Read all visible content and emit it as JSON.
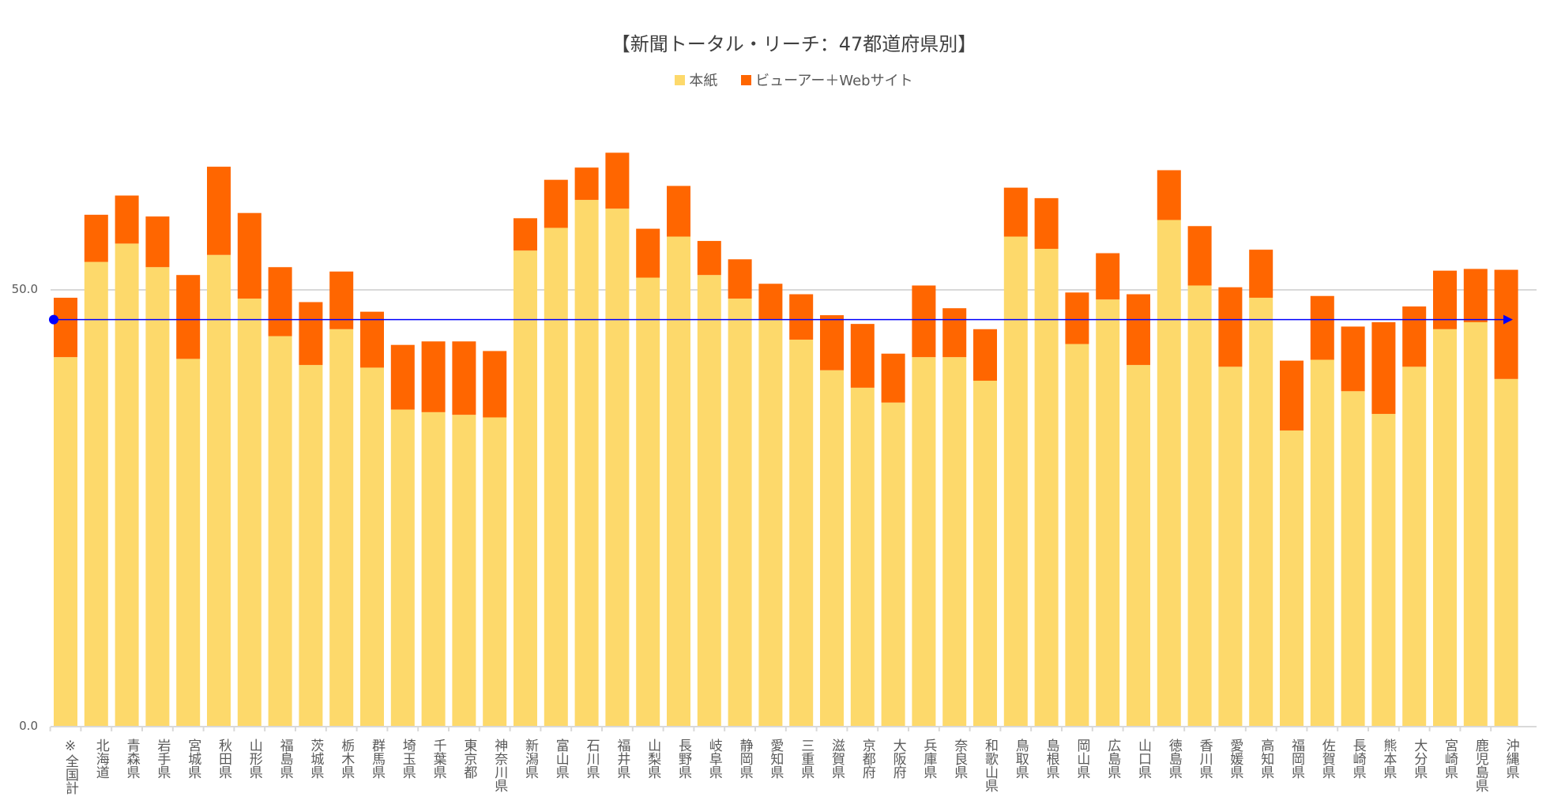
{
  "chart_data": {
    "type": "bar",
    "stacked": true,
    "title": "【新聞トータル・リーチ：47都道府県別】",
    "legend_position": "top",
    "ylim": [
      0,
      72
    ],
    "y_ticks": [
      {
        "value": 0,
        "label": "0.0"
      },
      {
        "value": 50,
        "label": "50.0"
      }
    ],
    "grid": true,
    "categories": [
      "※全国計",
      "北海道",
      "青森県",
      "岩手県",
      "宮城県",
      "秋田県",
      "山形県",
      "福島県",
      "茨城県",
      "栃木県",
      "群馬県",
      "埼玉県",
      "千葉県",
      "東京都",
      "神奈川県",
      "新潟県",
      "富山県",
      "石川県",
      "福井県",
      "山梨県",
      "長野県",
      "岐阜県",
      "静岡県",
      "愛知県",
      "三重県",
      "滋賀県",
      "京都府",
      "大阪府",
      "兵庫県",
      "奈良県",
      "和歌山県",
      "鳥取県",
      "島根県",
      "岡山県",
      "広島県",
      "山口県",
      "徳島県",
      "香川県",
      "愛媛県",
      "高知県",
      "福岡県",
      "佐賀県",
      "長崎県",
      "熊本県",
      "大分県",
      "宮崎県",
      "鹿児島県",
      "沖縄県"
    ],
    "series": [
      {
        "name": "本紙",
        "color": "#FDD96B",
        "values": [
          42.3,
          53.2,
          55.3,
          52.6,
          42.1,
          54.0,
          49.0,
          44.7,
          41.4,
          45.5,
          41.1,
          36.3,
          36.0,
          35.7,
          35.4,
          54.5,
          57.1,
          60.3,
          59.3,
          51.4,
          56.1,
          51.7,
          49.0,
          46.6,
          44.3,
          40.8,
          38.8,
          37.1,
          42.3,
          42.3,
          39.6,
          56.1,
          54.7,
          43.8,
          48.9,
          41.4,
          58.0,
          50.5,
          41.2,
          49.1,
          33.9,
          42.0,
          38.4,
          35.8,
          41.2,
          45.5,
          46.3,
          39.8
        ]
      },
      {
        "name": "ビューアー＋Webサイト",
        "color": "#FF6600",
        "values": [
          6.8,
          5.4,
          5.5,
          5.8,
          9.6,
          10.1,
          9.8,
          7.9,
          7.2,
          6.6,
          6.4,
          7.4,
          8.1,
          8.4,
          7.6,
          3.7,
          5.5,
          3.7,
          6.4,
          5.6,
          5.8,
          3.9,
          4.5,
          4.1,
          5.2,
          6.3,
          7.3,
          5.6,
          8.2,
          5.6,
          5.9,
          5.6,
          5.8,
          5.9,
          5.3,
          8.1,
          5.7,
          6.8,
          9.1,
          5.5,
          8.0,
          7.3,
          7.4,
          10.5,
          6.9,
          6.7,
          6.1,
          12.5
        ]
      }
    ],
    "reference_line": {
      "value": 46.6,
      "color": "#0000FF"
    }
  }
}
